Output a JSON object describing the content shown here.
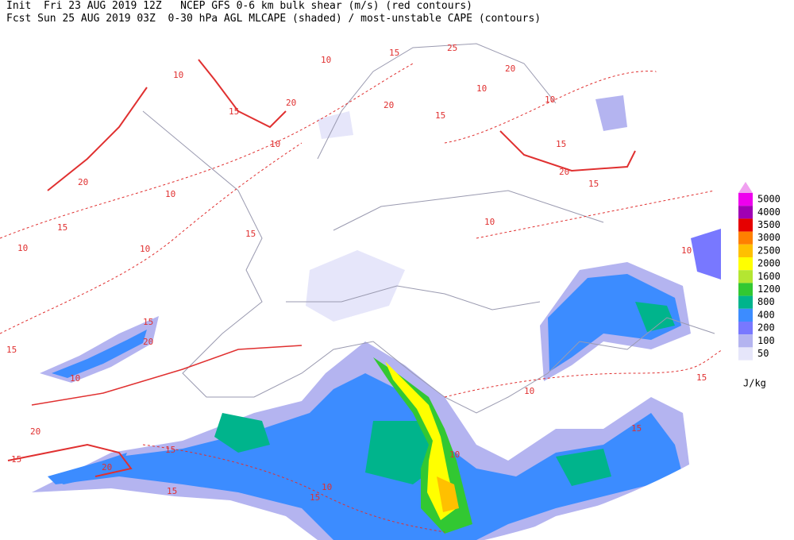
{
  "header": {
    "line1": "Init  Fri 23 AUG 2019 12Z   NCEP GFS 0-6 km bulk shear (m/s) (red contours)",
    "line2": "Fcst Sun 25 AUG 2019 03Z  0-30 hPa AGL MLCAPE (shaded) / most-unstable CAPE (contours)"
  },
  "legend": {
    "levels": [
      5000,
      4000,
      3500,
      3000,
      2500,
      2000,
      1600,
      1200,
      800,
      400,
      200,
      100,
      50
    ],
    "colors": [
      "#ee00ee",
      "#a000b4",
      "#e60000",
      "#ff8000",
      "#ffc000",
      "#ffff00",
      "#b4e632",
      "#32c832",
      "#00b48c",
      "#3c8cff",
      "#7878ff",
      "#b4b4f0",
      "#e6e6fa"
    ],
    "extend_color": "#f0a0f0",
    "unit": "J/kg"
  },
  "contour_labels": [
    "10",
    "10",
    "15",
    "25",
    "20",
    "10",
    "10",
    "20",
    "20",
    "15",
    "15",
    "15",
    "20",
    "10",
    "15",
    "10",
    "10",
    "20",
    "15",
    "15",
    "10",
    "10",
    "15",
    "20",
    "15",
    "10",
    "10",
    "10",
    "15",
    "15",
    "10",
    "15",
    "20",
    "20",
    "15",
    "10",
    "15",
    "15"
  ]
}
